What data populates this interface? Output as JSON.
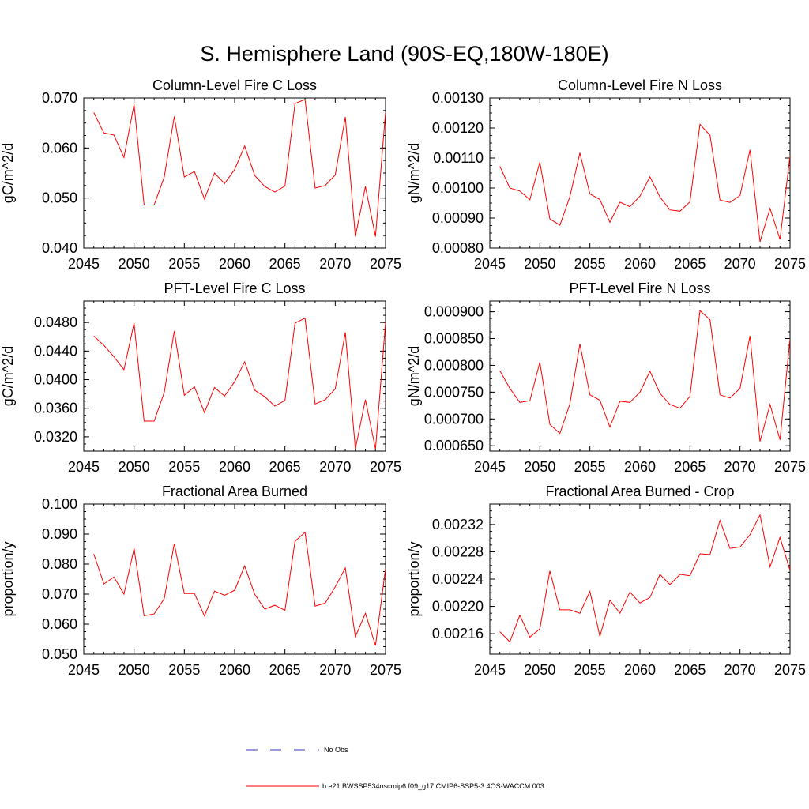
{
  "main_title": "S. Hemisphere Land (90S-EQ,180W-180E)",
  "colors": {
    "series": "#ff0000",
    "obs": "#3333cc",
    "axis": "#000000"
  },
  "chart_data": [
    {
      "type": "line",
      "title": "Column-Level Fire C Loss",
      "ylabel": "gC/m^2/d",
      "xlim": [
        2045,
        2075
      ],
      "ylim": [
        0.04,
        0.07
      ],
      "xticks": [
        2045,
        2050,
        2055,
        2060,
        2065,
        2070,
        2075
      ],
      "xtick_labels": [
        "2045",
        "2050",
        "2055",
        "2060",
        "2065",
        "2070",
        "2075"
      ],
      "yticks": [
        0.04,
        0.05,
        0.06,
        0.07
      ],
      "ytick_labels": [
        "0.040",
        "0.050",
        "0.060",
        "0.070"
      ],
      "x": [
        2046,
        2047,
        2048,
        2049,
        2050,
        2051,
        2052,
        2053,
        2054,
        2055,
        2056,
        2057,
        2058,
        2059,
        2060,
        2061,
        2062,
        2063,
        2064,
        2065,
        2066,
        2067,
        2068,
        2069,
        2070,
        2071,
        2072,
        2073,
        2074,
        2075
      ],
      "y": [
        0.0671,
        0.063,
        0.0626,
        0.0581,
        0.0687,
        0.0486,
        0.0486,
        0.0542,
        0.0663,
        0.0542,
        0.0553,
        0.0498,
        0.055,
        0.0529,
        0.0557,
        0.0604,
        0.0545,
        0.0523,
        0.0512,
        0.0524,
        0.0689,
        0.0697,
        0.052,
        0.0525,
        0.0546,
        0.0662,
        0.0423,
        0.0523,
        0.0423,
        0.0672
      ]
    },
    {
      "type": "line",
      "title": "Column-Level Fire N Loss",
      "ylabel": "gN/m^2/d",
      "xlim": [
        2045,
        2075
      ],
      "ylim": [
        0.0008,
        0.0013
      ],
      "xticks": [
        2045,
        2050,
        2055,
        2060,
        2065,
        2070,
        2075
      ],
      "xtick_labels": [
        "2045",
        "2050",
        "2055",
        "2060",
        "2065",
        "2070",
        "2075"
      ],
      "yticks": [
        0.0008,
        0.0009,
        0.001,
        0.0011,
        0.0012,
        0.0013
      ],
      "ytick_labels": [
        "0.00080",
        "0.00090",
        "0.00100",
        "0.00110",
        "0.00120",
        "0.00130"
      ],
      "x": [
        2046,
        2047,
        2048,
        2049,
        2050,
        2051,
        2052,
        2053,
        2054,
        2055,
        2056,
        2057,
        2058,
        2059,
        2060,
        2061,
        2062,
        2063,
        2064,
        2065,
        2066,
        2067,
        2068,
        2069,
        2070,
        2071,
        2072,
        2073,
        2074,
        2075
      ],
      "y": [
        0.001072,
        0.001,
        0.00099,
        0.000961,
        0.001086,
        0.000897,
        0.000876,
        0.000971,
        0.001117,
        0.00098,
        0.000962,
        0.000886,
        0.000953,
        0.000938,
        0.000973,
        0.001037,
        0.00097,
        0.000927,
        0.000923,
        0.000954,
        0.001212,
        0.001176,
        0.00096,
        0.000952,
        0.000975,
        0.001127,
        0.000821,
        0.000932,
        0.000829,
        0.001107
      ]
    },
    {
      "type": "line",
      "title": "PFT-Level Fire C Loss",
      "ylabel": "gC/m^2/d",
      "xlim": [
        2045,
        2075
      ],
      "ylim": [
        0.03,
        0.051
      ],
      "xticks": [
        2045,
        2050,
        2055,
        2060,
        2065,
        2070,
        2075
      ],
      "xtick_labels": [
        "2045",
        "2050",
        "2055",
        "2060",
        "2065",
        "2070",
        "2075"
      ],
      "yticks": [
        0.032,
        0.036,
        0.04,
        0.044,
        0.048
      ],
      "ytick_labels": [
        "0.0320",
        "0.0360",
        "0.0400",
        "0.0440",
        "0.0480"
      ],
      "x": [
        2046,
        2047,
        2048,
        2049,
        2050,
        2051,
        2052,
        2053,
        2054,
        2055,
        2056,
        2057,
        2058,
        2059,
        2060,
        2061,
        2062,
        2063,
        2064,
        2065,
        2066,
        2067,
        2068,
        2069,
        2070,
        2071,
        2072,
        2073,
        2074,
        2075
      ],
      "y": [
        0.0461,
        0.0448,
        0.0432,
        0.0414,
        0.0479,
        0.0342,
        0.0342,
        0.0382,
        0.0468,
        0.0378,
        0.039,
        0.0354,
        0.0389,
        0.0377,
        0.0397,
        0.0425,
        0.0385,
        0.0376,
        0.0363,
        0.0371,
        0.0479,
        0.0486,
        0.0366,
        0.0372,
        0.0387,
        0.0466,
        0.0303,
        0.0372,
        0.0303,
        0.048
      ]
    },
    {
      "type": "line",
      "title": "PFT-Level Fire N Loss",
      "ylabel": "gN/m^2/d",
      "xlim": [
        2045,
        2075
      ],
      "ylim": [
        0.00064,
        0.00092
      ],
      "xticks": [
        2045,
        2050,
        2055,
        2060,
        2065,
        2070,
        2075
      ],
      "xtick_labels": [
        "2045",
        "2050",
        "2055",
        "2060",
        "2065",
        "2070",
        "2075"
      ],
      "yticks": [
        0.00065,
        0.0007,
        0.00075,
        0.0008,
        0.00085,
        0.0009
      ],
      "ytick_labels": [
        "0.000650",
        "0.000700",
        "0.000750",
        "0.000800",
        "0.000850",
        "0.000900"
      ],
      "x": [
        2046,
        2047,
        2048,
        2049,
        2050,
        2051,
        2052,
        2053,
        2054,
        2055,
        2056,
        2057,
        2058,
        2059,
        2060,
        2061,
        2062,
        2063,
        2064,
        2065,
        2066,
        2067,
        2068,
        2069,
        2070,
        2071,
        2072,
        2073,
        2074,
        2075
      ],
      "y": [
        0.00079,
        0.000757,
        0.000731,
        0.000734,
        0.000806,
        0.00069,
        0.000673,
        0.000728,
        0.00084,
        0.000745,
        0.000735,
        0.000685,
        0.000733,
        0.000731,
        0.00075,
        0.000789,
        0.000748,
        0.000727,
        0.00072,
        0.000742,
        0.000902,
        0.000885,
        0.000745,
        0.000739,
        0.000757,
        0.000855,
        0.000658,
        0.000727,
        0.000661,
        0.00085
      ]
    },
    {
      "type": "line",
      "title": "Fractional Area Burned",
      "ylabel": "proportion/y",
      "xlim": [
        2045,
        2075
      ],
      "ylim": [
        0.05,
        0.1
      ],
      "xticks": [
        2045,
        2050,
        2055,
        2060,
        2065,
        2070,
        2075
      ],
      "xtick_labels": [
        "2045",
        "2050",
        "2055",
        "2060",
        "2065",
        "2070",
        "2075"
      ],
      "yticks": [
        0.05,
        0.06,
        0.07,
        0.08,
        0.09,
        0.1
      ],
      "ytick_labels": [
        "0.050",
        "0.060",
        "0.070",
        "0.080",
        "0.090",
        "0.100"
      ],
      "x": [
        2046,
        2047,
        2048,
        2049,
        2050,
        2051,
        2052,
        2053,
        2054,
        2055,
        2056,
        2057,
        2058,
        2059,
        2060,
        2061,
        2062,
        2063,
        2064,
        2065,
        2066,
        2067,
        2068,
        2069,
        2070,
        2071,
        2072,
        2073,
        2074,
        2075
      ],
      "y": [
        0.0834,
        0.0734,
        0.0757,
        0.07,
        0.0852,
        0.0628,
        0.0634,
        0.0685,
        0.0868,
        0.0702,
        0.0702,
        0.0627,
        0.071,
        0.0696,
        0.0713,
        0.0794,
        0.0699,
        0.065,
        0.0663,
        0.0646,
        0.0876,
        0.0906,
        0.066,
        0.067,
        0.0724,
        0.0787,
        0.0558,
        0.0636,
        0.0529,
        0.0785
      ]
    },
    {
      "type": "line",
      "title": "Fractional Area Burned - Crop",
      "ylabel": "proportion/y",
      "xlim": [
        2045,
        2075
      ],
      "ylim": [
        0.00213,
        0.00235
      ],
      "xticks": [
        2045,
        2050,
        2055,
        2060,
        2065,
        2070,
        2075
      ],
      "xtick_labels": [
        "2045",
        "2050",
        "2055",
        "2060",
        "2065",
        "2070",
        "2075"
      ],
      "yticks": [
        0.00216,
        0.0022,
        0.00224,
        0.00228,
        0.00232
      ],
      "ytick_labels": [
        "0.00216",
        "0.00220",
        "0.00224",
        "0.00228",
        "0.00232"
      ],
      "x": [
        2046,
        2047,
        2048,
        2049,
        2050,
        2051,
        2052,
        2053,
        2054,
        2055,
        2056,
        2057,
        2058,
        2059,
        2060,
        2061,
        2062,
        2063,
        2064,
        2065,
        2066,
        2067,
        2068,
        2069,
        2070,
        2071,
        2072,
        2073,
        2074,
        2075
      ],
      "y": [
        0.002163,
        0.002148,
        0.002187,
        0.002155,
        0.002167,
        0.002252,
        0.002195,
        0.002195,
        0.00219,
        0.002222,
        0.002156,
        0.002209,
        0.00219,
        0.002221,
        0.002205,
        0.002213,
        0.002247,
        0.002232,
        0.002247,
        0.002245,
        0.002277,
        0.002276,
        0.002326,
        0.002285,
        0.002287,
        0.002305,
        0.002334,
        0.002258,
        0.002301,
        0.002253
      ]
    }
  ],
  "legend": [
    {
      "label": "No Obs",
      "style": "dashed",
      "color": "#3333cc"
    },
    {
      "label": "b.e21.BWSSP534oscmip6.f09_g17.CMIP6-SSP5-3.4OS-WACCM.003",
      "style": "solid",
      "color": "#ff0000"
    }
  ]
}
